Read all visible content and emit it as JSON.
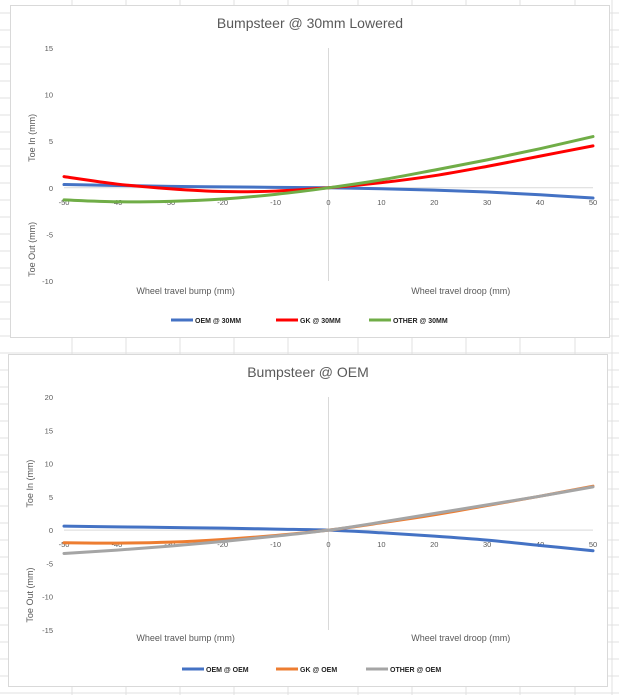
{
  "chart_data": [
    {
      "type": "line",
      "title": "Bumpsteer @ 30mm Lowered",
      "xlabel_left": "Wheel travel bump (mm)",
      "xlabel_right": "Wheel travel droop (mm)",
      "ylabel_top": "Toe In (mm)",
      "ylabel_bottom": "Toe Out (mm)",
      "xlim": [
        -50,
        50
      ],
      "ylim": [
        -10,
        15
      ],
      "x_ticks": [
        -50,
        -40,
        -30,
        -20,
        -10,
        0,
        10,
        20,
        30,
        40,
        50
      ],
      "y_ticks": [
        -10,
        -5,
        0,
        5,
        10,
        15
      ],
      "grid": false,
      "legend_position": "bottom",
      "x": [
        -50,
        -40,
        -30,
        -20,
        -10,
        0,
        10,
        20,
        30,
        40,
        50
      ],
      "series": [
        {
          "name": "OEM @ 30MM",
          "color": "#4472c4",
          "values": [
            0.35,
            0.25,
            0.15,
            0.1,
            0.05,
            0.0,
            -0.1,
            -0.25,
            -0.45,
            -0.75,
            -1.1
          ]
        },
        {
          "name": "GK @ 30MM",
          "color": "#ff0000",
          "values": [
            1.2,
            0.4,
            -0.1,
            -0.4,
            -0.35,
            0.0,
            0.55,
            1.3,
            2.3,
            3.4,
            4.5
          ]
        },
        {
          "name": "OTHER @ 30MM",
          "color": "#70ad47",
          "values": [
            -1.3,
            -1.5,
            -1.45,
            -1.2,
            -0.7,
            0.0,
            0.85,
            1.9,
            3.0,
            4.2,
            5.5
          ]
        }
      ]
    },
    {
      "type": "line",
      "title": "Bumpsteer @ OEM",
      "xlabel_left": "Wheel travel bump (mm)",
      "xlabel_right": "Wheel travel droop (mm)",
      "ylabel_top": "Toe In (mm)",
      "ylabel_bottom": "Toe Out (mm)",
      "xlim": [
        -50,
        50
      ],
      "ylim": [
        -15,
        20
      ],
      "x_ticks": [
        -50,
        -40,
        -30,
        -20,
        -10,
        0,
        10,
        20,
        30,
        40,
        50
      ],
      "y_ticks": [
        -15,
        -10,
        -5,
        0,
        5,
        10,
        15,
        20
      ],
      "grid": false,
      "legend_position": "bottom",
      "x": [
        -50,
        -40,
        -30,
        -20,
        -10,
        0,
        10,
        20,
        30,
        40,
        50
      ],
      "series": [
        {
          "name": "OEM @ OEM",
          "color": "#4472c4",
          "values": [
            0.6,
            0.5,
            0.4,
            0.3,
            0.15,
            0.0,
            -0.4,
            -0.9,
            -1.5,
            -2.3,
            -3.1
          ]
        },
        {
          "name": "GK @ OEM",
          "color": "#ed7d31",
          "values": [
            -1.9,
            -1.95,
            -1.8,
            -1.4,
            -0.8,
            0.0,
            1.1,
            2.3,
            3.7,
            5.1,
            6.6
          ]
        },
        {
          "name": "OTHER @ OEM",
          "color": "#a5a5a5",
          "values": [
            -3.5,
            -3.0,
            -2.4,
            -1.7,
            -0.9,
            0.0,
            1.2,
            2.5,
            3.8,
            5.1,
            6.5
          ]
        }
      ]
    }
  ]
}
